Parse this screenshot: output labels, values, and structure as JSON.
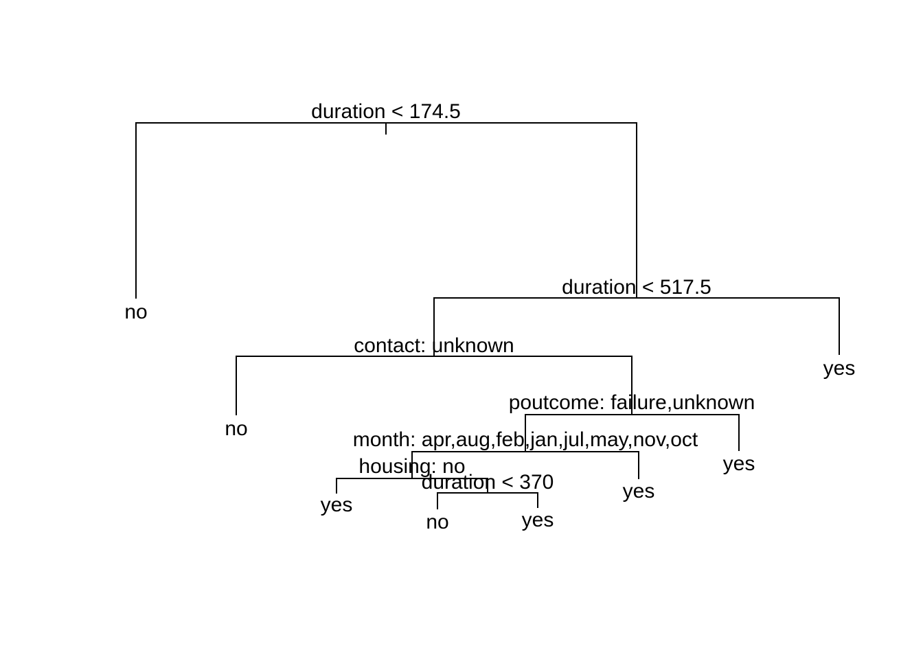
{
  "tree": {
    "splits": {
      "root": "duration < 174.5",
      "n2": "duration < 517.5",
      "n3": "contact: unknown",
      "n4": "poutcome: failure,unknown",
      "n5": "month: apr,aug,feb,jan,jul,may,nov,oct",
      "n6": "housing: no",
      "n7": "duration < 370"
    },
    "leaves": {
      "l1": "no",
      "l2": "yes",
      "l3": "no",
      "l4": "yes",
      "l5": "yes",
      "l6": "yes",
      "l7": "no",
      "l8": "yes"
    }
  }
}
